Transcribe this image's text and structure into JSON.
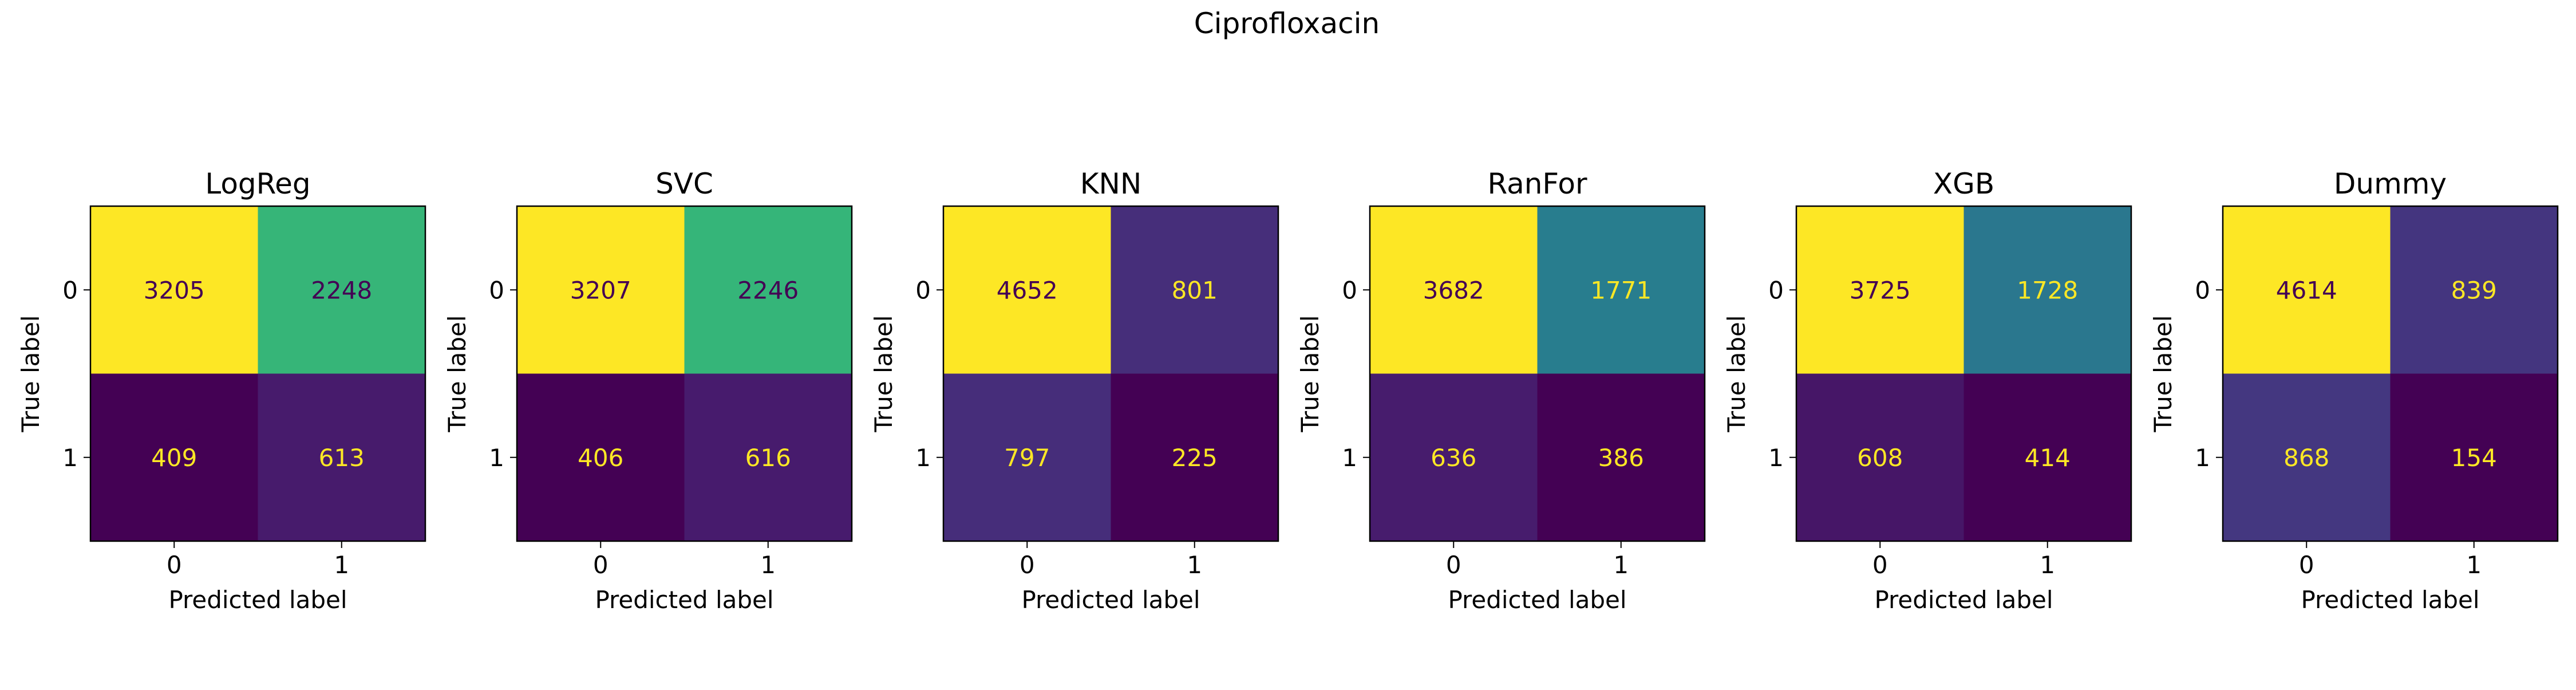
{
  "figure": {
    "title": "Ciprofloxacin"
  },
  "chart_data": [
    {
      "type": "heatmap",
      "title": "LogReg",
      "xlabel": "Predicted label",
      "ylabel": "True label",
      "x_ticks": [
        "0",
        "1"
      ],
      "y_ticks": [
        "0",
        "1"
      ],
      "values": [
        [
          3205,
          2248
        ],
        [
          409,
          613
        ]
      ],
      "colormap": "viridis"
    },
    {
      "type": "heatmap",
      "title": "SVC",
      "xlabel": "Predicted label",
      "ylabel": "True label",
      "x_ticks": [
        "0",
        "1"
      ],
      "y_ticks": [
        "0",
        "1"
      ],
      "values": [
        [
          3207,
          2246
        ],
        [
          406,
          616
        ]
      ],
      "colormap": "viridis"
    },
    {
      "type": "heatmap",
      "title": "KNN",
      "xlabel": "Predicted label",
      "ylabel": "True label",
      "x_ticks": [
        "0",
        "1"
      ],
      "y_ticks": [
        "0",
        "1"
      ],
      "values": [
        [
          4652,
          801
        ],
        [
          797,
          225
        ]
      ],
      "colormap": "viridis"
    },
    {
      "type": "heatmap",
      "title": "RanFor",
      "xlabel": "Predicted label",
      "ylabel": "True label",
      "x_ticks": [
        "0",
        "1"
      ],
      "y_ticks": [
        "0",
        "1"
      ],
      "values": [
        [
          3682,
          1771
        ],
        [
          636,
          386
        ]
      ],
      "colormap": "viridis"
    },
    {
      "type": "heatmap",
      "title": "XGB",
      "xlabel": "Predicted label",
      "ylabel": "True label",
      "x_ticks": [
        "0",
        "1"
      ],
      "y_ticks": [
        "0",
        "1"
      ],
      "values": [
        [
          3725,
          1728
        ],
        [
          608,
          414
        ]
      ],
      "colormap": "viridis"
    },
    {
      "type": "heatmap",
      "title": "Dummy",
      "xlabel": "Predicted label",
      "ylabel": "True label",
      "x_ticks": [
        "0",
        "1"
      ],
      "y_ticks": [
        "0",
        "1"
      ],
      "values": [
        [
          4614,
          839
        ],
        [
          868,
          154
        ]
      ],
      "colormap": "viridis"
    }
  ],
  "colors": {
    "text_on_dark": "#fde725",
    "text_on_light": "#440154",
    "frame": "#000000"
  }
}
